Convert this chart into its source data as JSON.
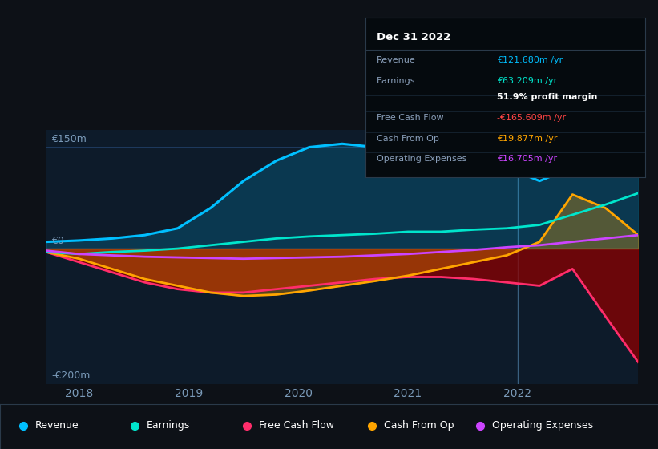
{
  "background_color": "#0d1117",
  "plot_bg_color": "#0d1b2a",
  "ylim": [
    -200,
    175
  ],
  "xlim": [
    2017.7,
    2023.1
  ],
  "yticks": [
    -200,
    0,
    150
  ],
  "xticks": [
    2018,
    2019,
    2020,
    2021,
    2022
  ],
  "grid_color": "#1e3a5f",
  "zero_line_color": "#3a5a7a",
  "series": {
    "Revenue": {
      "color": "#00bfff",
      "fill_color": "#00bfff",
      "x": [
        2017.7,
        2018.0,
        2018.3,
        2018.6,
        2018.9,
        2019.2,
        2019.5,
        2019.8,
        2020.1,
        2020.4,
        2020.7,
        2021.0,
        2021.3,
        2021.6,
        2021.9,
        2022.2,
        2022.5,
        2022.8,
        2023.1
      ],
      "y": [
        10,
        12,
        15,
        20,
        30,
        60,
        100,
        130,
        150,
        155,
        150,
        145,
        140,
        130,
        120,
        100,
        120,
        140,
        162
      ]
    },
    "Earnings": {
      "color": "#00e5cc",
      "x": [
        2017.7,
        2018.0,
        2018.3,
        2018.6,
        2018.9,
        2019.2,
        2019.5,
        2019.8,
        2020.1,
        2020.4,
        2020.7,
        2021.0,
        2021.3,
        2021.6,
        2021.9,
        2022.2,
        2022.5,
        2022.8,
        2023.1
      ],
      "y": [
        -5,
        -8,
        -5,
        -3,
        0,
        5,
        10,
        15,
        18,
        20,
        22,
        25,
        25,
        28,
        30,
        35,
        50,
        65,
        82
      ]
    },
    "Free Cash Flow": {
      "color": "#ff2d6b",
      "fill_color": "#8b0000",
      "x": [
        2017.7,
        2018.0,
        2018.3,
        2018.6,
        2018.9,
        2019.2,
        2019.5,
        2019.8,
        2020.1,
        2020.4,
        2020.7,
        2021.0,
        2021.3,
        2021.6,
        2021.9,
        2022.2,
        2022.5,
        2022.8,
        2023.1
      ],
      "y": [
        -5,
        -20,
        -35,
        -50,
        -60,
        -65,
        -65,
        -60,
        -55,
        -50,
        -45,
        -42,
        -42,
        -45,
        -50,
        -55,
        -30,
        -100,
        -168
      ]
    },
    "Cash From Op": {
      "color": "#ffa500",
      "fill_color": "#ffa500",
      "x": [
        2017.7,
        2018.0,
        2018.3,
        2018.6,
        2018.9,
        2019.2,
        2019.5,
        2019.8,
        2020.1,
        2020.4,
        2020.7,
        2021.0,
        2021.3,
        2021.6,
        2021.9,
        2022.2,
        2022.5,
        2022.8,
        2023.1
      ],
      "y": [
        -5,
        -15,
        -30,
        -45,
        -55,
        -65,
        -70,
        -68,
        -62,
        -55,
        -48,
        -40,
        -30,
        -20,
        -10,
        10,
        80,
        60,
        20
      ]
    },
    "Operating Expenses": {
      "color": "#cc44ff",
      "x": [
        2017.7,
        2018.0,
        2018.3,
        2018.6,
        2018.9,
        2019.2,
        2019.5,
        2019.8,
        2020.1,
        2020.4,
        2020.7,
        2021.0,
        2021.3,
        2021.6,
        2021.9,
        2022.2,
        2022.5,
        2022.8,
        2023.1
      ],
      "y": [
        -3,
        -8,
        -10,
        -12,
        -13,
        -14,
        -15,
        -14,
        -13,
        -12,
        -10,
        -8,
        -5,
        -2,
        2,
        5,
        10,
        15,
        20
      ]
    }
  },
  "tooltip": {
    "title": "Dec 31 2022",
    "rows": [
      {
        "label": "Revenue",
        "value": "€121.680m /yr",
        "color": "#00bfff"
      },
      {
        "label": "Earnings",
        "value": "€63.209m /yr",
        "color": "#00e5cc"
      },
      {
        "label": "",
        "value": "51.9% profit margin",
        "color": "#ffffff",
        "bold": true
      },
      {
        "label": "Free Cash Flow",
        "value": "-€165.609m /yr",
        "color": "#ff4444"
      },
      {
        "label": "Cash From Op",
        "value": "€19.877m /yr",
        "color": "#ffa500"
      },
      {
        "label": "Operating Expenses",
        "value": "€16.705m /yr",
        "color": "#cc44ff"
      }
    ]
  },
  "legend": [
    {
      "label": "Revenue",
      "color": "#00bfff"
    },
    {
      "label": "Earnings",
      "color": "#00e5cc"
    },
    {
      "label": "Free Cash Flow",
      "color": "#ff2d6b"
    },
    {
      "label": "Cash From Op",
      "color": "#ffa500"
    },
    {
      "label": "Operating Expenses",
      "color": "#cc44ff"
    }
  ],
  "vline_x": 2022.0,
  "vline_color": "#3a6080",
  "tick_color": "#7a9ab8",
  "label_color": "#7a9ab8"
}
